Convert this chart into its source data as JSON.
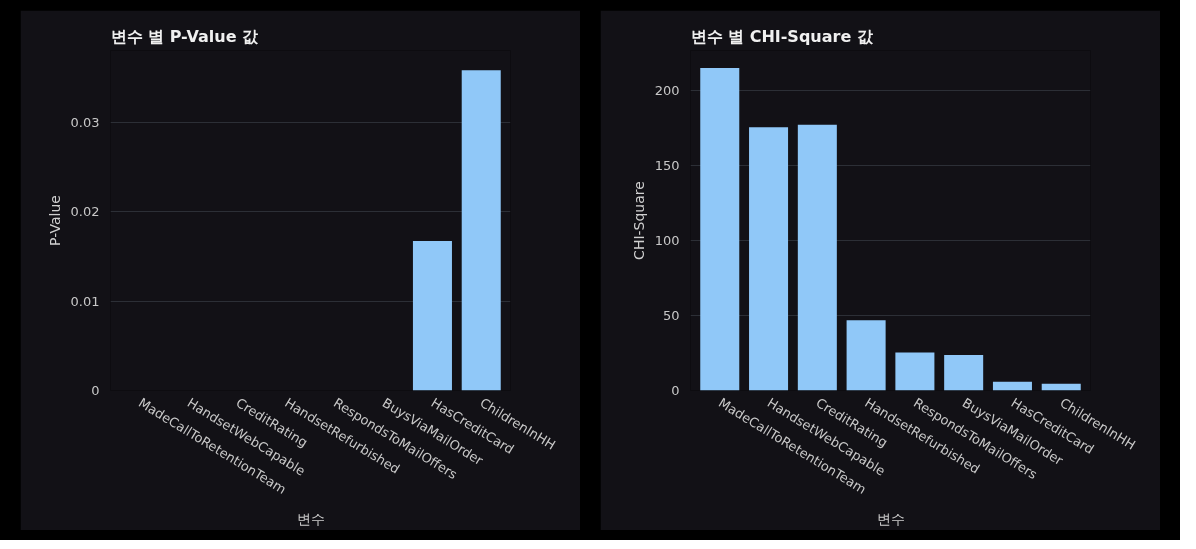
{
  "chart_data": [
    {
      "type": "bar",
      "title": "변수 별 P-Value 값",
      "xlabel": "변수",
      "ylabel": "P-Value",
      "categories": [
        "MadeCallToRetentionTeam",
        "HandsetWebCapable",
        "CreditRating",
        "HandsetRefurbished",
        "RespondsToMailOffers",
        "BuysViaMailOrder",
        "HasCreditCard",
        "ChildrenInHH"
      ],
      "values": [
        0,
        0,
        0,
        0,
        0,
        0,
        0.0167,
        0.0358
      ],
      "color": "#90c8f8",
      "ylim": [
        0,
        0.038
      ],
      "yticks": [
        0,
        0.01,
        0.02,
        0.03
      ],
      "grid": "y"
    },
    {
      "type": "bar",
      "title": "변수 별 CHI-Square 값",
      "xlabel": "변수",
      "ylabel": "CHI-Square",
      "categories": [
        "MadeCallToRetentionTeam",
        "HandsetWebCapable",
        "CreditRating",
        "HandsetRefurbished",
        "RespondsToMailOffers",
        "BuysViaMailOrder",
        "HasCreditCard",
        "ChildrenInHH"
      ],
      "values": [
        215.3,
        175.7,
        177.4,
        46.9,
        25.4,
        23.7,
        5.9,
        4.5
      ],
      "color": "#90c8f8",
      "ylim": [
        0,
        227
      ],
      "yticks": [
        0,
        50,
        100,
        150,
        200
      ],
      "grid": "y"
    }
  ]
}
